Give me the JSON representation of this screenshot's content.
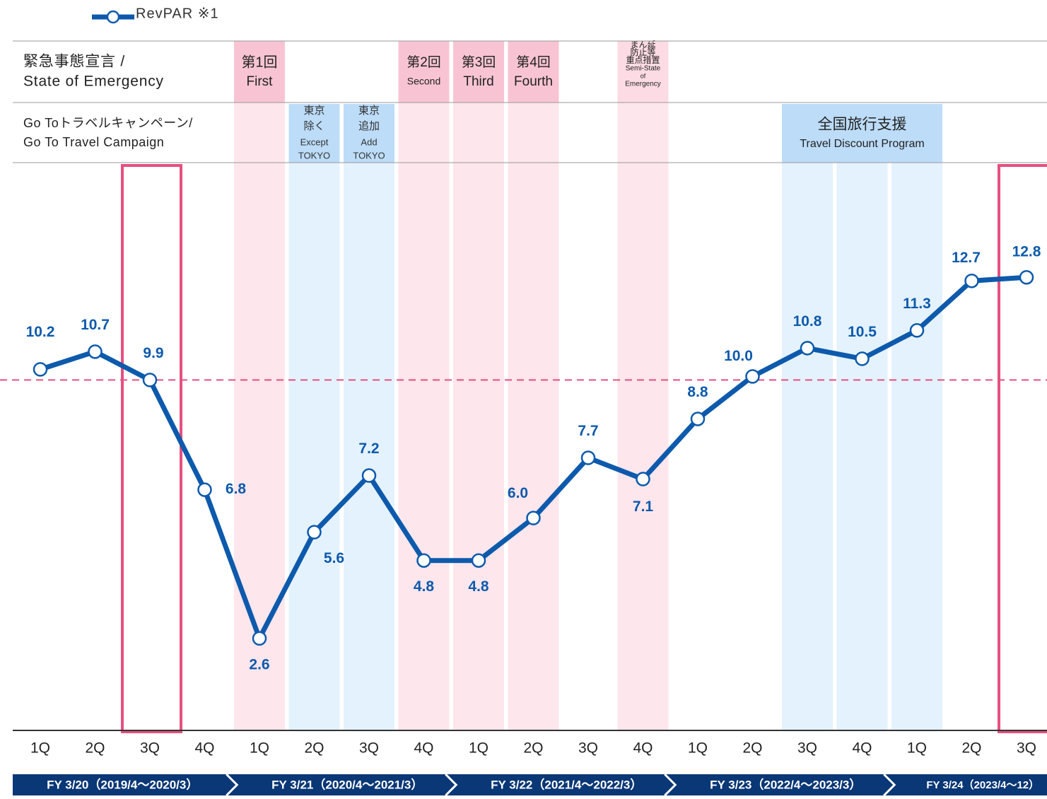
{
  "chart_data": {
    "type": "line",
    "categories": [
      "1Q",
      "2Q",
      "3Q",
      "4Q",
      "1Q",
      "2Q",
      "3Q",
      "4Q",
      "1Q",
      "2Q",
      "3Q",
      "4Q",
      "1Q",
      "2Q",
      "3Q",
      "4Q",
      "1Q",
      "2Q",
      "3Q"
    ],
    "series": [
      {
        "name": "RevPAR ※1",
        "color": "#0d5aac",
        "values": [
          10.2,
          10.7,
          9.9,
          6.8,
          2.6,
          5.6,
          7.2,
          4.8,
          4.8,
          6.0,
          7.7,
          7.1,
          8.8,
          10.0,
          10.8,
          10.5,
          11.3,
          12.7,
          12.8
        ],
        "value_labels": [
          "10.2",
          "10.7",
          "9.9",
          "6.8",
          "2.6",
          "5.6",
          "7.2",
          "4.8",
          "4.8",
          "6.0",
          "7.7",
          "7.1",
          "8.8",
          "10.0",
          "10.8",
          "10.5",
          "11.3",
          "12.7",
          "12.8"
        ]
      }
    ],
    "ylim": [
      0,
      16
    ],
    "header_rows": [
      {
        "lines": [
          "緊急事態宣言 /",
          "State of Emergency"
        ]
      },
      {
        "lines": [
          "Go Toトラベルキャンペーン/",
          "Go To Travel Campaign"
        ]
      }
    ],
    "emergency": [
      {
        "lines": [
          "第1回",
          "First"
        ]
      },
      {
        "lines": [
          "第2回",
          "Second"
        ]
      },
      {
        "lines": [
          "第3回",
          "Third"
        ]
      },
      {
        "lines": [
          "第4回",
          "Fourth"
        ]
      },
      {
        "lines": [
          "まん延",
          "防止等",
          "重点措置",
          "Semi-State",
          "of",
          "Emergency"
        ]
      }
    ],
    "go_to": [
      {
        "lines": [
          "東京",
          "除く",
          "Except",
          "TOKYO"
        ]
      },
      {
        "lines": [
          "東京",
          "追加",
          "Add",
          "TOKYO"
        ]
      },
      {
        "lines": [
          "全国旅行支援",
          "Travel Discount Program"
        ]
      }
    ],
    "fiscal_years": [
      "FY 3/20（2019/4～2020/3）",
      "FY 3/21（2020/4～2021/3）",
      "FY 3/22（2021/4～2022/3）",
      "FY 3/23（2022/4～2023/3）",
      "FY 3/24（2023/4～12）"
    ]
  }
}
